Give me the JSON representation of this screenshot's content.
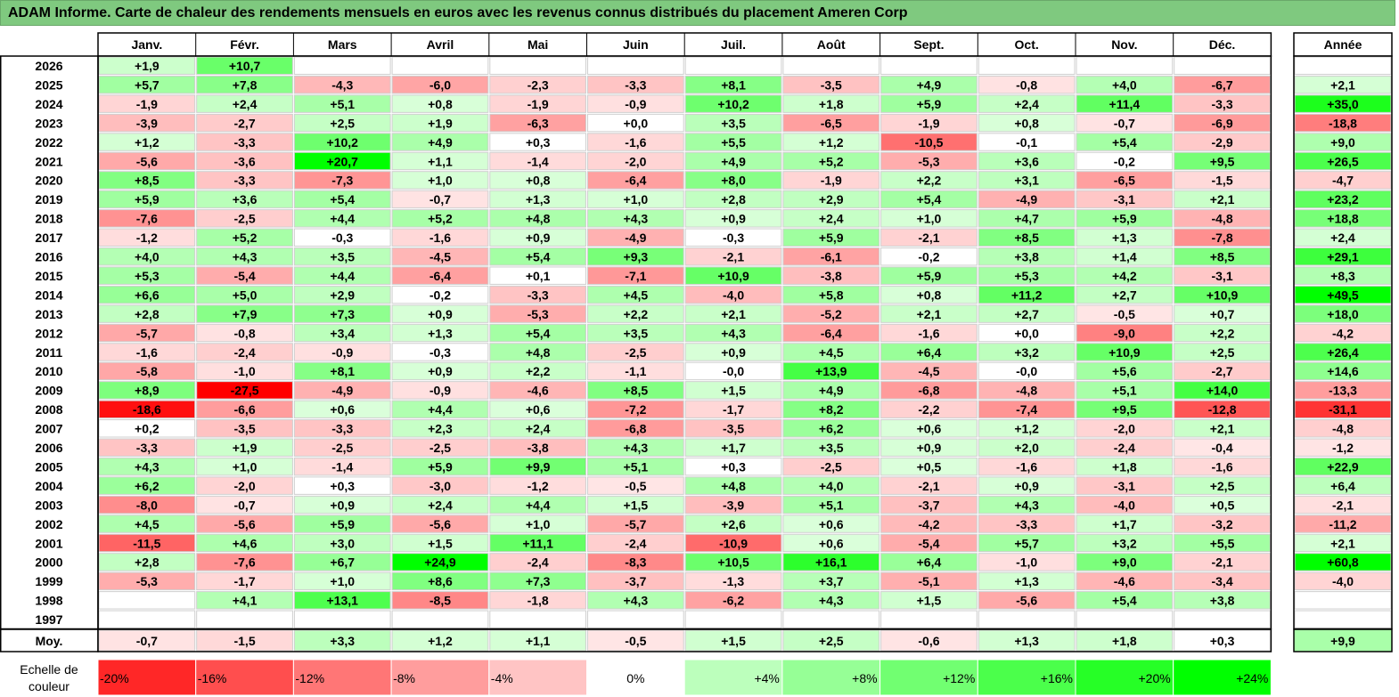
{
  "title": "ADAM Informe. Carte de chaleur des rendements mensuels en euros avec les revenus connus distribués du placement Ameren Corp",
  "chart_data": {
    "type": "heatmap",
    "months": [
      "Janv.",
      "Févr.",
      "Mars",
      "Avril",
      "Mai",
      "Juin",
      "Juil.",
      "Août",
      "Sept.",
      "Oct.",
      "Nov.",
      "Déc."
    ],
    "year_header": "Année",
    "rows": [
      {
        "year": "2026",
        "m": [
          "+1,9",
          "+10,7",
          null,
          null,
          null,
          null,
          null,
          null,
          null,
          null,
          null,
          null
        ],
        "y": null
      },
      {
        "year": "2025",
        "m": [
          "+5,7",
          "+7,8",
          "-4,3",
          "-6,0",
          "-2,3",
          "-3,3",
          "+8,1",
          "-3,5",
          "+4,9",
          "-0,8",
          "+4,0",
          "-6,7"
        ],
        "y": "+2,1"
      },
      {
        "year": "2024",
        "m": [
          "-1,9",
          "+2,4",
          "+5,1",
          "+0,8",
          "-1,9",
          "-0,9",
          "+10,2",
          "+1,8",
          "+5,9",
          "+2,4",
          "+11,4",
          "-3,3"
        ],
        "y": "+35,0"
      },
      {
        "year": "2023",
        "m": [
          "-3,9",
          "-2,7",
          "+2,5",
          "+1,9",
          "-6,3",
          "+0,0",
          "+3,5",
          "-6,5",
          "-1,9",
          "+0,8",
          "-0,7",
          "-6,9"
        ],
        "y": "-18,8"
      },
      {
        "year": "2022",
        "m": [
          "+1,2",
          "-3,3",
          "+10,2",
          "+4,9",
          "+0,3",
          "-1,6",
          "+5,5",
          "+1,2",
          "-10,5",
          "-0,1",
          "+5,4",
          "-2,9"
        ],
        "y": "+9,0"
      },
      {
        "year": "2021",
        "m": [
          "-5,6",
          "-3,6",
          "+20,7",
          "+1,1",
          "-1,4",
          "-2,0",
          "+4,9",
          "+5,2",
          "-5,3",
          "+3,6",
          "-0,2",
          "+9,5"
        ],
        "y": "+26,5"
      },
      {
        "year": "2020",
        "m": [
          "+8,5",
          "-3,3",
          "-7,3",
          "+1,0",
          "+0,8",
          "-6,4",
          "+8,0",
          "-1,9",
          "+2,2",
          "+3,1",
          "-6,5",
          "-1,5"
        ],
        "y": "-4,7"
      },
      {
        "year": "2019",
        "m": [
          "+5,9",
          "+3,6",
          "+5,4",
          "-0,7",
          "+1,3",
          "+1,0",
          "+2,8",
          "+2,9",
          "+5,4",
          "-4,9",
          "-3,1",
          "+2,1"
        ],
        "y": "+23,2"
      },
      {
        "year": "2018",
        "m": [
          "-7,6",
          "-2,5",
          "+4,4",
          "+5,2",
          "+4,8",
          "+4,3",
          "+0,9",
          "+2,4",
          "+1,0",
          "+4,7",
          "+5,9",
          "-4,8"
        ],
        "y": "+18,8"
      },
      {
        "year": "2017",
        "m": [
          "-1,2",
          "+5,2",
          "-0,3",
          "-1,6",
          "+0,9",
          "-4,9",
          "-0,3",
          "+5,9",
          "-2,1",
          "+8,5",
          "+1,3",
          "-7,8"
        ],
        "y": "+2,4"
      },
      {
        "year": "2016",
        "m": [
          "+4,0",
          "+4,3",
          "+3,5",
          "-4,5",
          "+5,4",
          "+9,3",
          "-2,1",
          "-6,1",
          "-0,2",
          "+3,8",
          "+1,4",
          "+8,5"
        ],
        "y": "+29,1"
      },
      {
        "year": "2015",
        "m": [
          "+5,3",
          "-5,4",
          "+4,4",
          "-6,4",
          "+0,1",
          "-7,1",
          "+10,9",
          "-3,8",
          "+5,9",
          "+5,3",
          "+4,2",
          "-3,1"
        ],
        "y": "+8,3"
      },
      {
        "year": "2014",
        "m": [
          "+6,6",
          "+5,0",
          "+2,9",
          "-0,2",
          "-3,3",
          "+4,5",
          "-4,0",
          "+5,8",
          "+0,8",
          "+11,2",
          "+2,7",
          "+10,9"
        ],
        "y": "+49,5"
      },
      {
        "year": "2013",
        "m": [
          "+2,8",
          "+7,9",
          "+7,3",
          "+0,9",
          "-5,3",
          "+2,2",
          "+2,1",
          "-5,2",
          "+2,1",
          "+2,7",
          "-0,5",
          "+0,7"
        ],
        "y": "+18,0"
      },
      {
        "year": "2012",
        "m": [
          "-5,7",
          "-0,8",
          "+3,4",
          "+1,3",
          "+5,4",
          "+3,5",
          "+4,3",
          "-6,4",
          "-1,6",
          "+0,0",
          "-9,0",
          "+2,2"
        ],
        "y": "-4,2"
      },
      {
        "year": "2011",
        "m": [
          "-1,6",
          "-2,4",
          "-0,9",
          "-0,3",
          "+4,8",
          "-2,5",
          "+0,9",
          "+4,5",
          "+6,4",
          "+3,2",
          "+10,9",
          "+2,5"
        ],
        "y": "+26,4"
      },
      {
        "year": "2010",
        "m": [
          "-5,8",
          "-1,0",
          "+8,1",
          "+0,9",
          "+2,2",
          "-1,1",
          "-0,0",
          "+13,9",
          "-4,5",
          "-0,0",
          "+5,6",
          "-2,7"
        ],
        "y": "+14,6"
      },
      {
        "year": "2009",
        "m": [
          "+8,9",
          "-27,5",
          "-4,9",
          "-0,9",
          "-4,6",
          "+8,5",
          "+1,5",
          "+4,9",
          "-6,8",
          "-4,8",
          "+5,1",
          "+14,0"
        ],
        "y": "-13,3"
      },
      {
        "year": "2008",
        "m": [
          "-18,6",
          "-6,6",
          "+0,6",
          "+4,4",
          "+0,6",
          "-7,2",
          "-1,7",
          "+8,2",
          "-2,2",
          "-7,4",
          "+9,5",
          "-12,8"
        ],
        "y": "-31,1"
      },
      {
        "year": "2007",
        "m": [
          "+0,2",
          "-3,5",
          "-3,3",
          "+2,3",
          "+2,4",
          "-6,8",
          "-3,5",
          "+6,2",
          "+0,6",
          "+1,2",
          "-2,0",
          "+2,1"
        ],
        "y": "-4,8"
      },
      {
        "year": "2006",
        "m": [
          "-3,3",
          "+1,9",
          "-2,5",
          "-2,5",
          "-3,8",
          "+4,3",
          "+1,7",
          "+3,5",
          "+0,9",
          "+2,0",
          "-2,4",
          "-0,4"
        ],
        "y": "-1,2"
      },
      {
        "year": "2005",
        "m": [
          "+4,3",
          "+1,0",
          "-1,4",
          "+5,9",
          "+9,9",
          "+5,1",
          "+0,3",
          "-2,5",
          "+0,5",
          "-1,6",
          "+1,8",
          "-1,6"
        ],
        "y": "+22,9"
      },
      {
        "year": "2004",
        "m": [
          "+6,2",
          "-2,0",
          "+0,3",
          "-3,0",
          "-1,2",
          "-0,5",
          "+4,8",
          "+4,0",
          "-2,1",
          "+0,9",
          "-3,1",
          "+2,5"
        ],
        "y": "+6,4"
      },
      {
        "year": "2003",
        "m": [
          "-8,0",
          "-0,7",
          "+0,9",
          "+2,4",
          "+4,4",
          "+1,5",
          "-3,9",
          "+5,1",
          "-3,7",
          "+4,3",
          "-4,0",
          "+0,5"
        ],
        "y": "-2,1"
      },
      {
        "year": "2002",
        "m": [
          "+4,5",
          "-5,6",
          "+5,9",
          "-5,6",
          "+1,0",
          "-5,7",
          "+2,6",
          "+0,6",
          "-4,2",
          "-3,3",
          "+1,7",
          "-3,2"
        ],
        "y": "-11,2"
      },
      {
        "year": "2001",
        "m": [
          "-11,5",
          "+4,6",
          "+3,0",
          "+1,5",
          "+11,1",
          "-2,4",
          "-10,9",
          "+0,6",
          "-5,4",
          "+5,7",
          "+3,2",
          "+5,5"
        ],
        "y": "+2,1"
      },
      {
        "year": "2000",
        "m": [
          "+2,8",
          "-7,6",
          "+6,7",
          "+24,9",
          "-2,4",
          "-8,3",
          "+10,5",
          "+16,1",
          "+6,4",
          "-1,0",
          "+9,0",
          "-2,1"
        ],
        "y": "+60,8"
      },
      {
        "year": "1999",
        "m": [
          "-5,3",
          "-1,7",
          "+1,0",
          "+8,6",
          "+7,3",
          "-3,7",
          "-1,3",
          "+3,7",
          "-5,1",
          "+1,3",
          "-4,6",
          "-3,4"
        ],
        "y": "-4,0"
      },
      {
        "year": "1998",
        "m": [
          null,
          "+4,1",
          "+13,1",
          "-8,5",
          "-1,8",
          "+4,3",
          "-6,2",
          "+4,3",
          "+1,5",
          "-5,6",
          "+5,4",
          "+3,8"
        ],
        "y": null
      },
      {
        "year": "1997",
        "m": [
          null,
          null,
          null,
          null,
          null,
          null,
          null,
          null,
          null,
          null,
          null,
          null
        ],
        "y": null
      }
    ],
    "average": {
      "label": "Moy.",
      "m": [
        "-0,7",
        "-1,5",
        "+3,3",
        "+1,2",
        "+1,1",
        "-0,5",
        "+1,5",
        "+2,5",
        "-0,6",
        "+1,3",
        "+1,8",
        "+0,3"
      ],
      "y": "+9,9"
    },
    "scale": {
      "label_line1": "Echelle de",
      "label_line2": "couleur",
      "steps": [
        "-20%",
        "-16%",
        "-12%",
        "-8%",
        "-4%",
        "0%",
        "+4%",
        "+8%",
        "+12%",
        "+16%",
        "+20%",
        "+24%"
      ],
      "values": [
        -20,
        -16,
        -12,
        -8,
        -4,
        0,
        4,
        8,
        12,
        16,
        20,
        24
      ]
    },
    "colors": {
      "negative_max": "#ff0000",
      "neutral": "#ffffff",
      "positive_max": "#00ff00",
      "title_bg": "#7fc97f"
    }
  }
}
